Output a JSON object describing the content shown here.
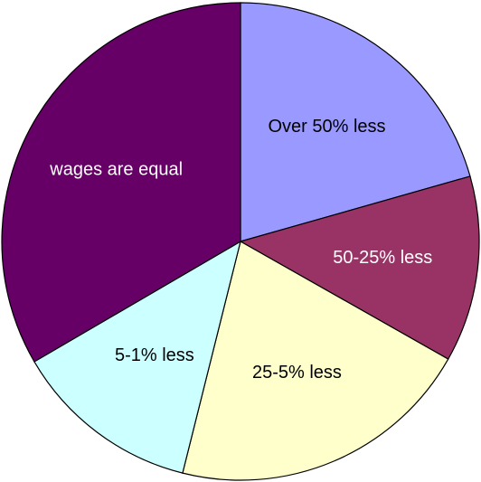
{
  "chart_data": {
    "type": "pie",
    "categories": [
      "Over 50% less",
      "50-25% less",
      "25-5% less",
      "5-1% less",
      "wages are equal"
    ],
    "values": [
      20.6,
      12.6,
      20.7,
      12.7,
      33.4
    ],
    "colors": [
      "#9999ff",
      "#993366",
      "#ffffcc",
      "#ccffff",
      "#660066"
    ]
  }
}
